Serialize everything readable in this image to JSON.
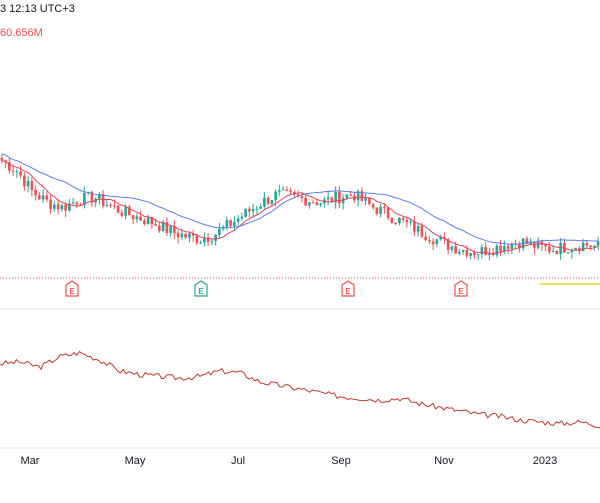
{
  "header": {
    "timestamp_text": "3 12:13 UTC+3",
    "volume_text": "60.656M"
  },
  "colors": {
    "up": "#26a69a",
    "down": "#ef5350",
    "ma_fast": "#e0435d",
    "ma_slow": "#5b7fe8",
    "indicator": "#c0392b",
    "price_line": "#ef5350",
    "highlight": "#f5d020",
    "text": "#131722"
  },
  "chart_data": [
    {
      "type": "candlestick",
      "title": "",
      "x_ticks": [
        "Mar",
        "May",
        "Jul",
        "Sep",
        "Nov",
        "2023"
      ],
      "ohlc_close_trend": [
        100,
        96,
        88,
        84,
        82,
        85,
        86,
        83,
        80,
        78,
        76,
        73,
        71,
        70,
        72,
        76,
        80,
        84,
        87,
        86,
        85,
        84,
        86,
        87,
        83,
        80,
        77,
        74,
        71,
        68,
        66,
        65,
        66,
        68,
        69,
        67,
        66,
        67,
        68,
        67
      ],
      "moving_averages": [
        {
          "name": "",
          "color_key": "ma_fast"
        },
        {
          "name": "",
          "color_key": "ma_slow"
        }
      ],
      "earnings_markers": [
        {
          "label": "E",
          "color_key": "down"
        },
        {
          "label": "E",
          "color_key": "up"
        },
        {
          "label": "E",
          "color_key": "down"
        },
        {
          "label": "E",
          "color_key": "down"
        }
      ]
    },
    {
      "type": "line",
      "title": "",
      "values": [
        62,
        63,
        60,
        66,
        68,
        64,
        58,
        56,
        55,
        54,
        55,
        58,
        57,
        52,
        50,
        48,
        46,
        44,
        43,
        42,
        43,
        40,
        38,
        36,
        34,
        33,
        31,
        30,
        29,
        30,
        28
      ]
    }
  ]
}
